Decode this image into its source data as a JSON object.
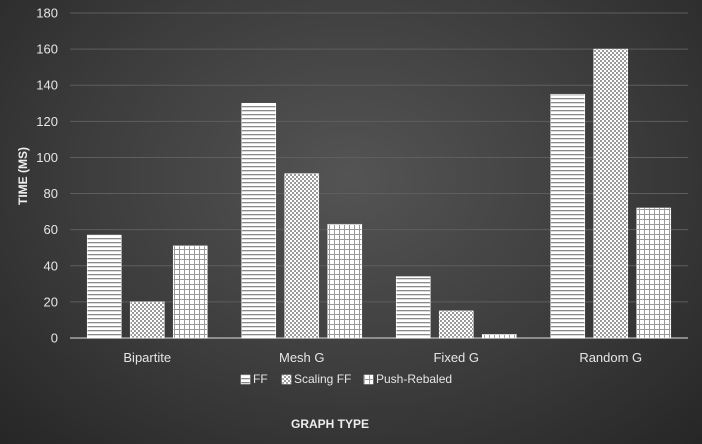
{
  "chart_data": {
    "type": "bar",
    "categories": [
      "Bipartite",
      "Mesh G",
      "Fixed G",
      "Random G"
    ],
    "series": [
      {
        "name": "FF",
        "values": [
          57,
          130,
          34,
          135
        ],
        "pattern": "horizontal-lines"
      },
      {
        "name": "Scaling FF",
        "values": [
          20,
          91,
          15,
          160
        ],
        "pattern": "crosshatch"
      },
      {
        "name": "Push-Rebaled",
        "values": [
          51,
          63,
          2,
          72
        ],
        "pattern": "grid"
      }
    ],
    "title": "",
    "xlabel": "GRAPH TYPE",
    "ylabel": "TIME (MS)",
    "ylim": [
      0,
      180
    ],
    "yticks": [
      0,
      20,
      40,
      60,
      80,
      100,
      120,
      140,
      160,
      180
    ],
    "grid": true,
    "legend_position": "bottom",
    "colors": {
      "background": "#3c3c3c",
      "bar_fill": "#ffffff",
      "bar_pattern": "#8a8a8a",
      "text": "#e6e6e6",
      "grid": "#5e5e5e"
    }
  }
}
